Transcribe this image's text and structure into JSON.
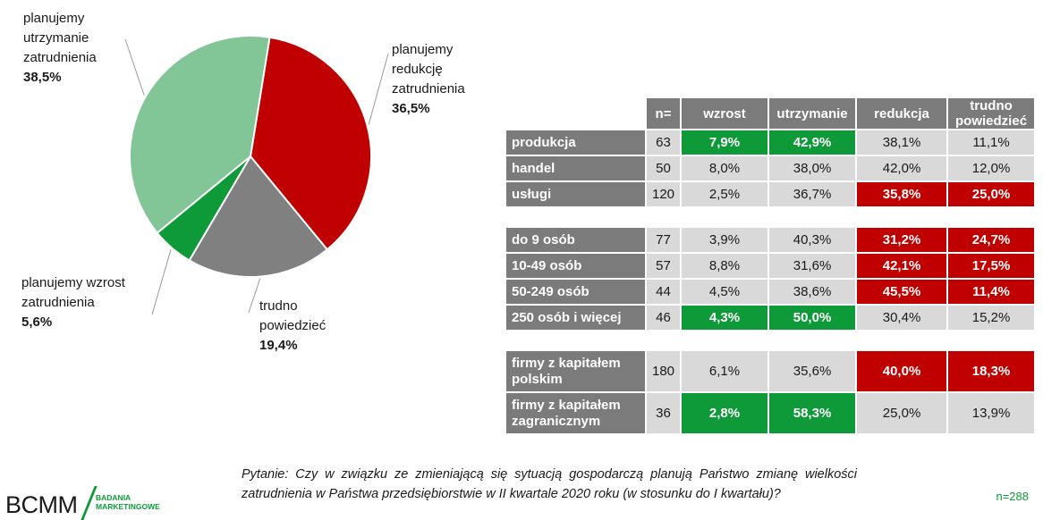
{
  "chart_data": [
    {
      "type": "pie",
      "slices": [
        {
          "label": "planujemy\nredukcję\nzatrudnienia",
          "value": 36.5,
          "value_label": "36,5%",
          "color": "#c00000"
        },
        {
          "label": "trudno\npowiedzieć",
          "value": 19.4,
          "value_label": "19,4%",
          "color": "#808080"
        },
        {
          "label": "planujemy wzrost\nzatrudnienia",
          "value": 5.6,
          "value_label": "5,6%",
          "color": "#0f9a3a"
        },
        {
          "label": "planujemy\nutrzymanie\nzatrudnienia",
          "value": 38.5,
          "value_label": "38,5%",
          "color": "#82c596"
        }
      ]
    },
    {
      "type": "table",
      "columns": [
        "n=",
        "wzrost",
        "utrzymanie",
        "redukcja",
        "trudno powiedzieć"
      ],
      "groups": [
        {
          "rows": [
            {
              "label": "produkcja",
              "n": "63",
              "values": [
                "7,9%",
                "42,9%",
                "38,1%",
                "11,1%"
              ],
              "highlight": [
                "green",
                "green",
                "",
                ""
              ]
            },
            {
              "label": "handel",
              "n": "50",
              "values": [
                "8,0%",
                "38,0%",
                "42,0%",
                "12,0%"
              ],
              "highlight": [
                "",
                "",
                "",
                ""
              ]
            },
            {
              "label": "usługi",
              "n": "120",
              "values": [
                "2,5%",
                "36,7%",
                "35,8%",
                "25,0%"
              ],
              "highlight": [
                "",
                "",
                "red",
                "red"
              ]
            }
          ]
        },
        {
          "rows": [
            {
              "label": "do 9 osób",
              "n": "77",
              "values": [
                "3,9%",
                "40,3%",
                "31,2%",
                "24,7%"
              ],
              "highlight": [
                "",
                "",
                "red",
                "red"
              ]
            },
            {
              "label": "10-49 osób",
              "n": "57",
              "values": [
                "8,8%",
                "31,6%",
                "42,1%",
                "17,5%"
              ],
              "highlight": [
                "",
                "",
                "red",
                "red"
              ]
            },
            {
              "label": "50-249 osób",
              "n": "44",
              "values": [
                "4,5%",
                "38,6%",
                "45,5%",
                "11,4%"
              ],
              "highlight": [
                "",
                "",
                "red",
                "red"
              ]
            },
            {
              "label": "250 osób i więcej",
              "n": "46",
              "values": [
                "4,3%",
                "50,0%",
                "30,4%",
                "15,2%"
              ],
              "highlight": [
                "green",
                "green",
                "",
                ""
              ]
            }
          ]
        },
        {
          "rows": [
            {
              "label": "firmy z kapitałem polskim",
              "n": "180",
              "values": [
                "6,1%",
                "35,6%",
                "40,0%",
                "18,3%"
              ],
              "highlight": [
                "",
                "",
                "red",
                "red"
              ]
            },
            {
              "label": "firmy z kapitałem zagranicznym",
              "n": "36",
              "values": [
                "2,8%",
                "58,3%",
                "25,0%",
                "13,9%"
              ],
              "highlight": [
                "green",
                "green",
                "",
                ""
              ]
            }
          ]
        }
      ]
    }
  ],
  "footer": {
    "question": "Pytanie: Czy w związku ze zmieniającą się sytuacją gospodarczą planują Państwo zmianę wielkości zatrudnienia w Państwa przedsiębiorstwie w II kwartale 2020 roku (w stosunku do I kwartału)?",
    "n_total": "n=288"
  },
  "logo": {
    "brand": "BCMM",
    "tagline_1": "BADANIA",
    "tagline_2": "MARKETINGOWE"
  }
}
